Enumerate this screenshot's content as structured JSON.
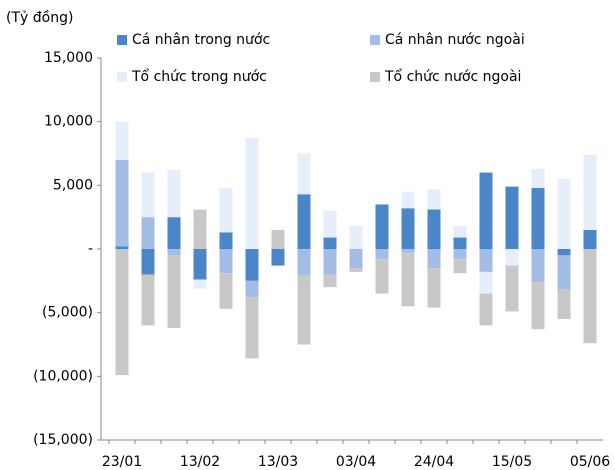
{
  "chart_data": {
    "type": "stacked_bar",
    "y_label": "(Tỷ đồng)",
    "categories": [
      "23/01",
      null,
      null,
      "13/02",
      null,
      null,
      "13/03",
      null,
      null,
      "03/04",
      null,
      null,
      "24/04",
      null,
      null,
      "15/05",
      null,
      null,
      "05/06"
    ],
    "series": [
      {
        "name": "Cá nhân trong nước",
        "color": "#4a86c8",
        "values": [
          200,
          -2000,
          2500,
          -2400,
          1300,
          -2500,
          -1300,
          4300,
          900,
          0,
          3500,
          3200,
          3100,
          900,
          6000,
          4900,
          4800,
          -500,
          1500
        ]
      },
      {
        "name": "Cá nhân nước ngoài",
        "color": "#a3bde6",
        "values": [
          6800,
          2500,
          -500,
          0,
          -1900,
          -1300,
          0,
          -2100,
          -2000,
          -1500,
          -800,
          -300,
          -1500,
          -800,
          -1800,
          0,
          -2600,
          -2700,
          0
        ]
      },
      {
        "name": "Tổ chức trong nước",
        "color": "#e6eefa",
        "values": [
          3000,
          3500,
          3700,
          -700,
          3500,
          8700,
          0,
          3200,
          2100,
          1800,
          0,
          1300,
          1600,
          900,
          -1700,
          -1300,
          1500,
          5500,
          5900
        ]
      },
      {
        "name": "Tổ chức nước ngoài",
        "color": "#c8c8c8",
        "values": [
          -9900,
          -4000,
          -5700,
          3100,
          -2800,
          -4800,
          1500,
          -5400,
          -1000,
          -300,
          -2700,
          -4200,
          -3100,
          -1100,
          -2500,
          -3600,
          -3700,
          -2300,
          -7400
        ]
      }
    ],
    "ylim": [
      -15000,
      15000
    ],
    "yticks": [
      {
        "value": -15000,
        "label": "(15,000)"
      },
      {
        "value": -10000,
        "label": "(10,000)"
      },
      {
        "value": -5000,
        "label": "(5,000)"
      },
      {
        "value": 0,
        "label": "-"
      },
      {
        "value": 5000,
        "label": "5,000"
      },
      {
        "value": 10000,
        "label": "10,000"
      },
      {
        "value": 15000,
        "label": "15,000"
      }
    ],
    "grid": false
  }
}
